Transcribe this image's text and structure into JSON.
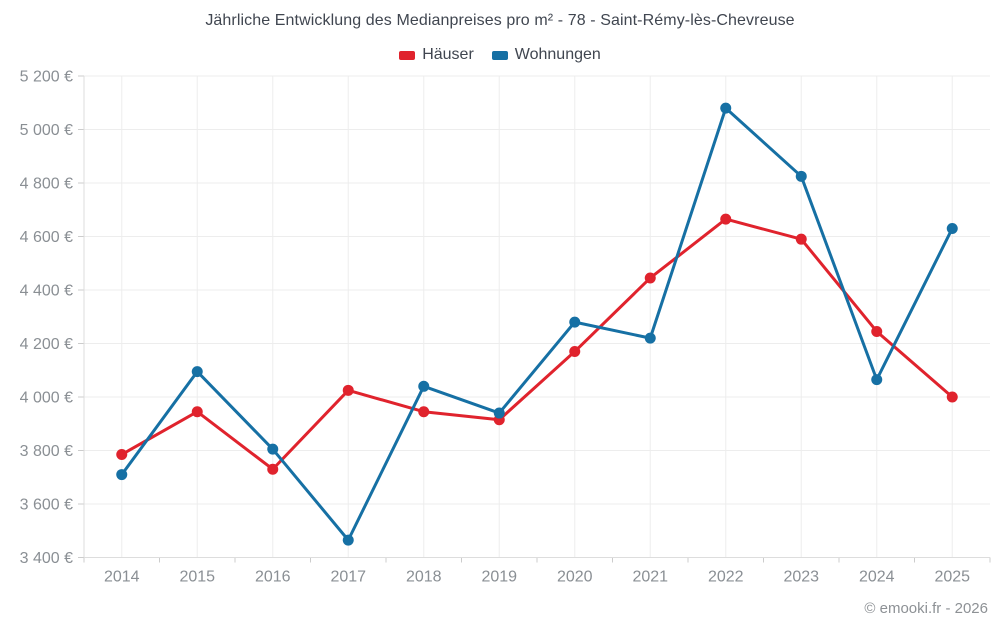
{
  "title": "Jährliche Entwicklung des Medianpreises pro m² - 78 - Saint-Rémy-lès-Chevreuse",
  "footer": {
    "copyright": "© emooki.fr - 2026"
  },
  "chart_data": {
    "type": "line",
    "title": "Jährliche Entwicklung des Medianpreises pro m² - 78 - Saint-Rémy-lès-Chevreuse",
    "categories": [
      "2014",
      "2015",
      "2016",
      "2017",
      "2018",
      "2019",
      "2020",
      "2021",
      "2022",
      "2023",
      "2024",
      "2025"
    ],
    "series": [
      {
        "name": "Häuser",
        "color": "#e0232d",
        "values": [
          3785,
          3945,
          3730,
          4025,
          3945,
          3915,
          4170,
          4445,
          4665,
          4590,
          4245,
          4000
        ]
      },
      {
        "name": "Wohnungen",
        "color": "#1670a4",
        "values": [
          3710,
          4095,
          3805,
          3465,
          4040,
          3940,
          4280,
          4220,
          5080,
          4825,
          4065,
          4630
        ]
      }
    ],
    "xlabel": "",
    "ylabel": "",
    "ylim": [
      3400,
      5200
    ],
    "ytick_step": 200,
    "ytick_suffix": " €",
    "grid": true,
    "legend_position": "top"
  },
  "style": {
    "grid_color": "#ededed",
    "axis_color": "#dddddd",
    "tick_color": "#cccccc",
    "axis_text_color": "#8a8f94"
  }
}
